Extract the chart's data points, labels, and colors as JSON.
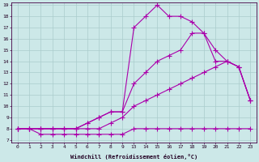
{
  "xlabel": "Windchill (Refroidissement éolien,°C)",
  "bg_color": "#cce8e8",
  "grid_color": "#aacccc",
  "line_color": "#aa00aa",
  "line_width": 0.8,
  "marker": "+",
  "markersize": 4,
  "markeredgewidth": 0.8,
  "ymin": 7,
  "ymax": 19,
  "xtick_labels": [
    "0",
    "1",
    "2",
    "3",
    "4",
    "5",
    "6",
    "7",
    "8",
    "9",
    "13",
    "14",
    "15",
    "16",
    "17",
    "18",
    "19",
    "20",
    "21",
    "22",
    "23"
  ],
  "ytick_labels": [
    "7",
    "8",
    "9",
    "10",
    "11",
    "12",
    "13",
    "14",
    "15",
    "16",
    "17",
    "18",
    "19"
  ],
  "series": [
    {
      "xi": [
        0,
        1,
        2,
        3,
        4,
        5,
        6,
        7,
        8,
        9,
        10,
        11,
        12,
        13,
        14,
        15,
        16,
        17,
        18,
        19,
        20
      ],
      "y": [
        8,
        8,
        7.5,
        7.5,
        7.5,
        7.5,
        7.5,
        7.5,
        7.5,
        7.5,
        8,
        8,
        8,
        8,
        8,
        8,
        8,
        8,
        8,
        8,
        8
      ]
    },
    {
      "xi": [
        0,
        1,
        2,
        3,
        4,
        5,
        6,
        7,
        8,
        9,
        10,
        11,
        12,
        13,
        14,
        15,
        16,
        17,
        18,
        19,
        20
      ],
      "y": [
        8,
        8,
        8,
        8,
        8,
        8,
        8,
        8,
        8.5,
        9.0,
        10,
        10.5,
        11,
        11.5,
        12,
        12.5,
        13,
        13.5,
        14,
        13.5,
        10.5
      ]
    },
    {
      "xi": [
        0,
        1,
        2,
        3,
        4,
        5,
        6,
        7,
        8,
        9,
        10,
        11,
        12,
        13,
        14,
        15,
        16,
        17,
        18,
        19,
        20
      ],
      "y": [
        8,
        8,
        8,
        8,
        8,
        8,
        8.5,
        9,
        9.5,
        9.5,
        12,
        13,
        14,
        14.5,
        15,
        16.5,
        16.5,
        14,
        14,
        13.5,
        10.5
      ]
    },
    {
      "xi": [
        0,
        1,
        2,
        3,
        4,
        5,
        6,
        7,
        8,
        9,
        10,
        11,
        12,
        13,
        14,
        15,
        16,
        17,
        18,
        19,
        20
      ],
      "y": [
        8,
        8,
        8,
        8,
        8,
        8,
        8.5,
        9,
        9.5,
        9.5,
        17,
        18,
        19,
        18,
        18,
        17.5,
        16.5,
        15,
        14,
        13.5,
        10.5
      ]
    }
  ]
}
